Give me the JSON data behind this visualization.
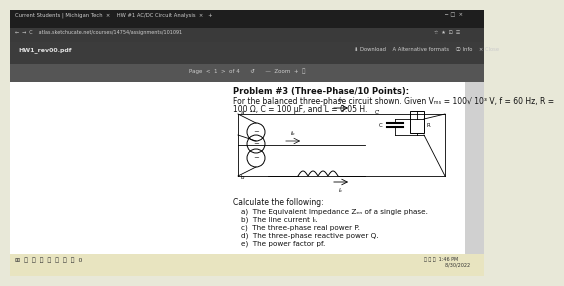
{
  "title": "Problem #3 (Three-Phase/10 Points):",
  "given_line1": "For the balanced three-phase circuit shown. Given Vₘₛ = 100√ 10³ V, f = 60 Hz, R =",
  "given_line2": "100 Ω, C = 100 μF, and L = 0.05 H.",
  "calculate_header": "Calculate the following:",
  "items": [
    "a)  The Equivalent Impedance Zₑₙ of a single phase.",
    "b)  The line current Iₗ.",
    "c)  The three-phase real power P.",
    "d)  The three-phase reactive power Q.",
    "e)  The power factor pf."
  ],
  "tab_bg": "#1e1e1e",
  "addr_bg": "#3a3a3a",
  "toolbar_bg": "#2d2d2d",
  "header_bg": "#3c3c3c",
  "pagebar_bg": "#555555",
  "content_bg": "#e8e8d8",
  "white_panel_bg": "#ffffff",
  "sidebar_bg": "#d0d0d0",
  "taskbar_bg": "#e8e4c0",
  "text_dark": "#111111",
  "text_gray": "#888888",
  "tab_text": "#cccccc",
  "addr_text": "#cccccc",
  "header_text": "#cccccc",
  "page_text": "#cccccc",
  "filename_text": "#e0e0e0",
  "title_fs": 6.0,
  "body_fs": 5.5,
  "item_fs": 5.2
}
